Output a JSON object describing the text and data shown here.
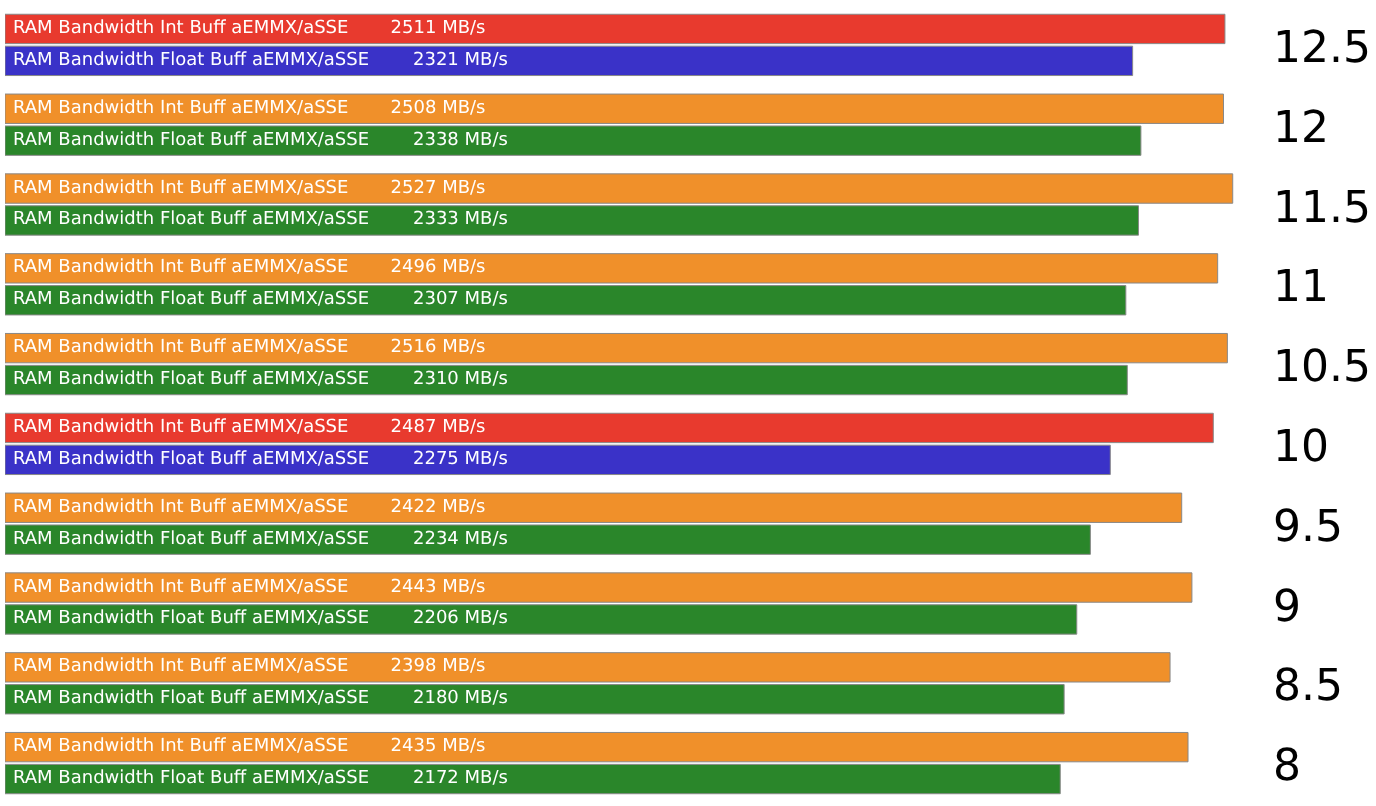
{
  "chart_data": {
    "type": "bar",
    "orientation": "horizontal",
    "categories": [
      "12.5",
      "12",
      "11.5",
      "11",
      "10.5",
      "10",
      "9.5",
      "9",
      "8.5",
      "8"
    ],
    "tick_labels": "y",
    "grid": false,
    "series": [
      {
        "name": "RAM Bandwidth Int Buff aEMMX/aSSE",
        "colors": [
          "#e83a2e",
          "#f0902a",
          "#f0902a",
          "#f0902a",
          "#f0902a",
          "#e83a2e",
          "#f0902a",
          "#f0902a",
          "#f0902a",
          "#f0902a"
        ],
        "values": [
          2511,
          2508,
          2527,
          2496,
          2516,
          2487,
          2422,
          2443,
          2398,
          2435
        ],
        "value_labels": [
          "2511 MB/s",
          "2508 MB/s",
          "2527 MB/s",
          "2496 MB/s",
          "2516 MB/s",
          "2487 MB/s",
          "2422 MB/s",
          "2443 MB/s",
          "2398 MB/s",
          "2435 MB/s"
        ]
      },
      {
        "name": "RAM Bandwidth Float Buff aEMMX/aSSE",
        "colors": [
          "#3a32c8",
          "#2a862a",
          "#2a862a",
          "#2a862a",
          "#2a862a",
          "#3a32c8",
          "#2a862a",
          "#2a862a",
          "#2a862a",
          "#2a862a"
        ],
        "values": [
          2321,
          2338,
          2333,
          2307,
          2310,
          2275,
          2234,
          2206,
          2180,
          2172
        ],
        "value_labels": [
          "2321 MB/s",
          "2338 MB/s",
          "2333 MB/s",
          "2307 MB/s",
          "2310 MB/s",
          "2275 MB/s",
          "2234 MB/s",
          "2206 MB/s",
          "2180 MB/s",
          "2172 MB/s"
        ]
      }
    ]
  }
}
